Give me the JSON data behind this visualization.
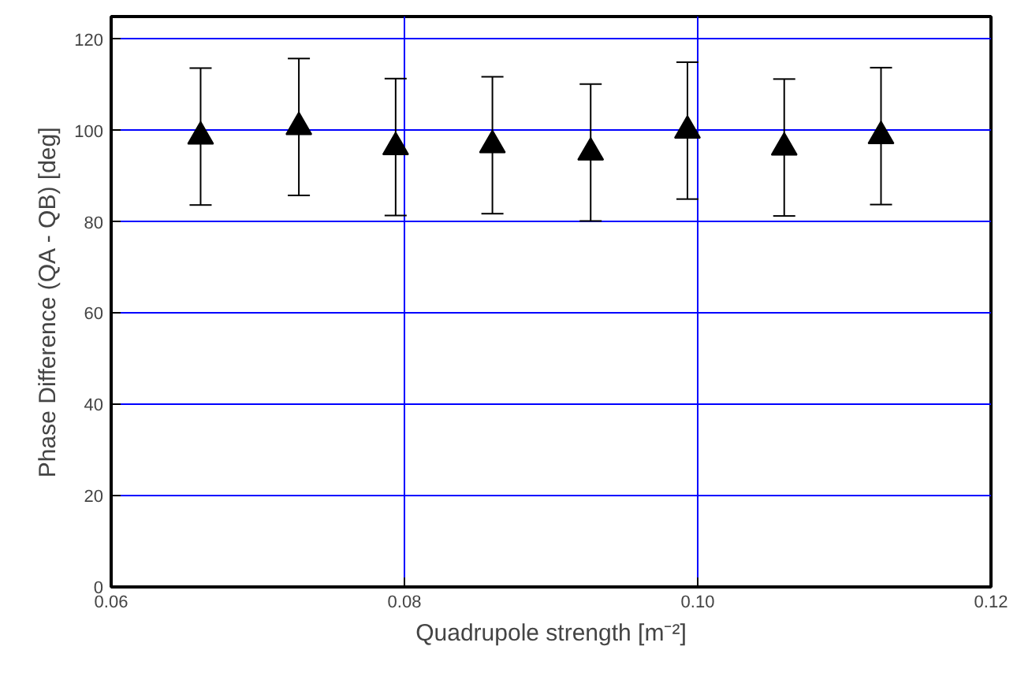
{
  "chart_data": {
    "type": "scatter",
    "xlabel": "Quadrupole strength [m⁻²]",
    "ylabel": "Phase Difference (QA - QB) [deg]",
    "x": [
      0.0661,
      0.0728,
      0.0794,
      0.086,
      0.0927,
      0.0993,
      0.1059,
      0.1125
    ],
    "series": [
      {
        "color": "#000000",
        "values": [
          98.7,
          100.8,
          96.4,
          96.8,
          95.2,
          100,
          96.3,
          98.8
        ],
        "errors": [
          15,
          15,
          15,
          15,
          15,
          15,
          15,
          15
        ]
      }
    ],
    "xlim": [
      0.06,
      0.12
    ],
    "xticks": [
      {
        "value": 0.06,
        "label": "0.06"
      },
      {
        "value": 0.08,
        "label": "0.08"
      },
      {
        "value": 0.1,
        "label": "0.10"
      },
      {
        "value": 0.12,
        "label": "0.12"
      }
    ],
    "ylim": [
      0,
      125
    ],
    "yticks": [
      0,
      20,
      40,
      60,
      80,
      100,
      120
    ],
    "grid": true,
    "marker": "triangle"
  }
}
